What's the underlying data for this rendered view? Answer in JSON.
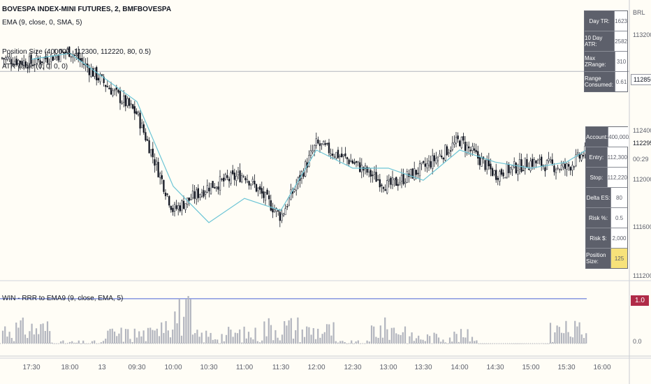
{
  "header": {
    "symbol_line": "BOVESPA INDEX-MINI FUTURES, 2, BMFBOVESPA",
    "indicator_1": "EMA (9, close, 0, SMA, 5)",
    "indicator_2": "Position Size (400000, 112300, 112220, 80, 0.5)",
    "indicator_3": "ATR Table (0, 0, 0, 0)",
    "lower_pane_title": "WIN - RRR to EMA9 (9, close, EMA, 5)"
  },
  "atr_table": [
    {
      "label": "Day TR:",
      "value": "1623"
    },
    {
      "label": "10 Day ATR:",
      "value": "2582"
    },
    {
      "label": "Max ZRange:",
      "value": "310"
    },
    {
      "label": "Range Consumed:",
      "value": "0.61"
    }
  ],
  "position_table": [
    {
      "label": "Account:",
      "value": "400,000"
    },
    {
      "label": "Entry:",
      "value": "112,300"
    },
    {
      "label": "Stop:",
      "value": "112,220"
    },
    {
      "label": "Delta ES:",
      "value": "80"
    },
    {
      "label": "Risk %:",
      "value": "0.5"
    },
    {
      "label": "Risk $:",
      "value": "2,000"
    },
    {
      "label": "Position Size:",
      "value": "125"
    }
  ],
  "price_axis": {
    "currency": "BRL",
    "labels": [
      "113200",
      "112400",
      "112000",
      "111600",
      "111200"
    ],
    "badge_line": "112850",
    "badge_last": "112295",
    "badge_time": "00:29"
  },
  "lower_axis": {
    "labels": [
      "0.0"
    ],
    "badge": "1.0"
  },
  "time_axis": [
    "17:30",
    "18:00",
    "13",
    "09:30",
    "10:00",
    "10:30",
    "11:00",
    "11:30",
    "12:00",
    "12:30",
    "13:00",
    "13:30",
    "14:00",
    "14:30",
    "15:00",
    "15:30",
    "16:00"
  ],
  "colors": {
    "background": "#fffdf6",
    "candle": "#131722",
    "ema": "#6cc5d6",
    "histogram": "#b2b5be",
    "threshold_line": "#4a63d6",
    "badge_red": "#b02b48",
    "highlight": "#f7e27a"
  },
  "chart_data": [
    {
      "type": "candlestick",
      "interval": "2 minutes",
      "y_unit": "BRL",
      "ylim": [
        111120,
        113440
      ],
      "horizontal_line": 112850,
      "last_price": 112295,
      "series": [
        {
          "name": "EMA",
          "x": [
            "17:30",
            "18:00",
            "09:30",
            "10:00",
            "10:30",
            "11:00",
            "11:30",
            "12:00",
            "12:30",
            "13:00",
            "13:30",
            "14:00",
            "14:30",
            "15:00",
            "15:30",
            "16:00"
          ],
          "values": [
            112950,
            113000,
            112600,
            111900,
            111600,
            111800,
            111700,
            112200,
            112050,
            112050,
            111950,
            112200,
            112100,
            112050,
            112100,
            112280
          ]
        }
      ],
      "close_path": [
        {
          "x": "17:30",
          "y": 112920
        },
        {
          "x": "18:00",
          "y": 113020
        },
        {
          "x": "09:30",
          "y": 112500
        },
        {
          "x": "10:00",
          "y": 111700
        },
        {
          "x": "10:30",
          "y": 111900
        },
        {
          "x": "11:00",
          "y": 112000
        },
        {
          "x": "11:30",
          "y": 111650
        },
        {
          "x": "12:00",
          "y": 112250
        },
        {
          "x": "12:30",
          "y": 112100
        },
        {
          "x": "13:00",
          "y": 111900
        },
        {
          "x": "13:30",
          "y": 112050
        },
        {
          "x": "14:00",
          "y": 112280
        },
        {
          "x": "14:30",
          "y": 112000
        },
        {
          "x": "15:00",
          "y": 112100
        },
        {
          "x": "15:30",
          "y": 112050
        },
        {
          "x": "16:00",
          "y": 112295
        }
      ]
    },
    {
      "type": "bar",
      "title": "WIN - RRR to EMA9 (9, close, EMA, 5)",
      "ylim": [
        0,
        1.2
      ],
      "threshold": 1.0,
      "x": [
        "17:30",
        "18:00",
        "09:30",
        "10:00",
        "10:30",
        "11:00",
        "11:30",
        "12:00",
        "12:30",
        "13:00",
        "13:30",
        "14:00",
        "14:30",
        "15:00",
        "15:30"
      ],
      "values": [
        0.5,
        0.1,
        0.35,
        0.9,
        0.3,
        0.35,
        0.55,
        0.45,
        0.1,
        0.5,
        0.25,
        0.3,
        0.05,
        0.05,
        0.45
      ]
    }
  ]
}
